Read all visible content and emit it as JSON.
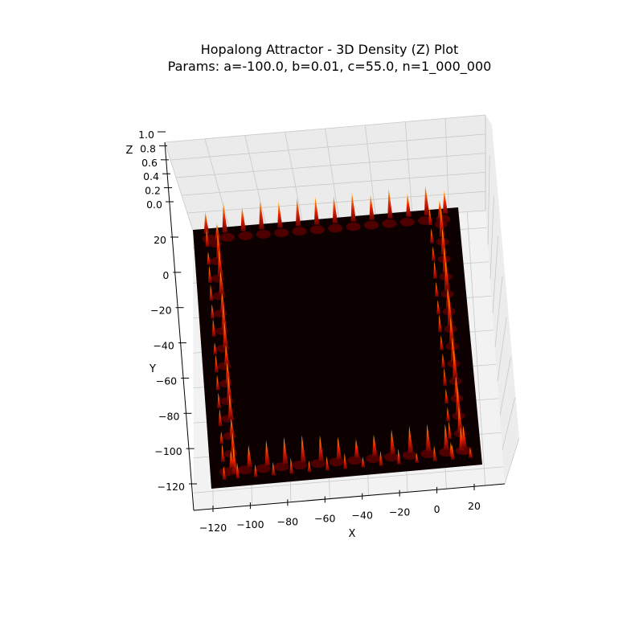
{
  "chart_data": {
    "type": "surface3d",
    "title_line1": "Hopalong Attractor - 3D Density (Z) Plot",
    "title_line2": "Params: a=-100.0, b=0.01, c=55.0, n=1_000_000",
    "xlabel": "X",
    "ylabel": "Y",
    "zlabel": "Z",
    "x_ticks": [
      "−120",
      "−100",
      "−80",
      "−60",
      "−40",
      "−20",
      "0",
      "20"
    ],
    "y_ticks": [
      "20",
      "0",
      "−20",
      "−40",
      "−60",
      "−80",
      "−100",
      "−120"
    ],
    "z_ticks": [
      "0.0",
      "0.2",
      "0.4",
      "0.6",
      "0.8",
      "1.0"
    ],
    "xlim": [
      -125,
      30
    ],
    "ylim": [
      -130,
      30
    ],
    "zlim": [
      0,
      1
    ],
    "colormap": "hot",
    "colors": {
      "background": "#0d0000",
      "pane": "#f2f2f2",
      "grid": "#c8c8c8",
      "spike_base": "#6b0000",
      "spike_mid": "#e02000",
      "spike_top": "#ffd000"
    },
    "params": {
      "a": -100.0,
      "b": 0.01,
      "c": 55.0,
      "n": "1_000_000"
    }
  }
}
